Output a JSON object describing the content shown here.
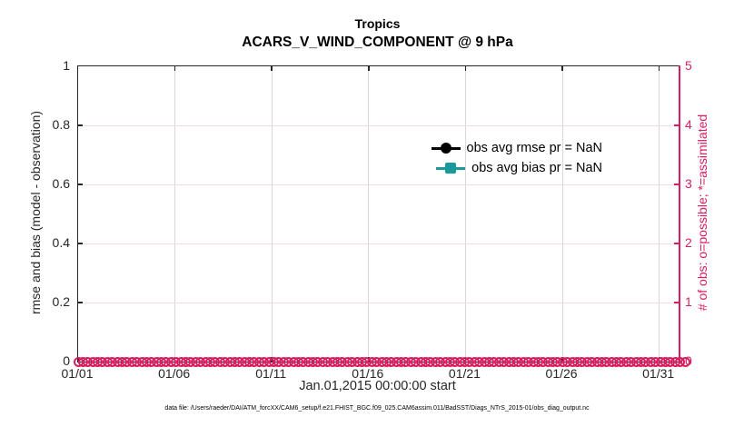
{
  "title": {
    "line1": "Tropics",
    "line2": "ACARS_V_WIND_COMPONENT @ 9 hPa"
  },
  "colors": {
    "accent_pink": "#D81E5F",
    "grid_pink": "#F8D8E3",
    "grid_gray": "#D8D8D8",
    "axis_black": "#262626",
    "teal": "#1A9B9B",
    "legend_black": "#000000"
  },
  "left_axis": {
    "label": "rmse and bias (model - observation)",
    "ticks": [
      "0",
      "0.2",
      "0.4",
      "0.6",
      "0.8",
      "1"
    ],
    "min": 0,
    "max": 1
  },
  "right_axis": {
    "label": "# of obs: o=possible; *=assimilated",
    "ticks": [
      "0",
      "1",
      "2",
      "3",
      "4",
      "5"
    ],
    "min": 0,
    "max": 5
  },
  "x_axis": {
    "tick_labels": [
      "01/01",
      "01/06",
      "01/11",
      "01/16",
      "01/21",
      "01/26",
      "01/31"
    ],
    "tick_days": [
      0,
      5,
      10,
      15,
      20,
      25,
      30
    ],
    "range_days": 31,
    "label": "Jan.01,2015 00:00:00 start"
  },
  "legend": {
    "entries": [
      {
        "label": "obs avg rmse pr = NaN",
        "marker": "circle",
        "color": "#000000"
      },
      {
        "label": "obs avg bias pr = NaN",
        "marker": "square",
        "color": "#1A9B9B"
      }
    ]
  },
  "footer": "data file: /Users/raeder/DAI/ATM_forcXX/CAM6_setup/f.e21.FHIST_BGC.f09_025.CAM6assim.011/BadSST/Diags_NTrS_2015-01/obs_diag_output.nc",
  "chart_data": {
    "type": "line",
    "title": "Tropics",
    "subtitle": "ACARS_V_WIND_COMPONENT @ 9 hPa",
    "xlabel": "Jan.01,2015 00:00:00 start",
    "ylabel_left": "rmse and bias (model - observation)",
    "ylabel_right": "# of obs: o=possible; *=assimilated",
    "x_tick_labels": [
      "01/01",
      "01/06",
      "01/11",
      "01/16",
      "01/21",
      "01/26",
      "01/31"
    ],
    "x_range_days": [
      0,
      31
    ],
    "ylim_left": [
      0,
      1
    ],
    "ylim_right": [
      0,
      5
    ],
    "grid": true,
    "legend_position": "top-right-inside",
    "series": [
      {
        "name": "obs avg rmse pr = NaN",
        "axis": "left",
        "marker": "circle",
        "color": "#000000",
        "values": [],
        "note": "all values NaN, nothing plotted"
      },
      {
        "name": "obs avg bias pr = NaN",
        "axis": "left",
        "marker": "square",
        "color": "#1A9B9B",
        "values": [],
        "note": "all values NaN, nothing plotted"
      },
      {
        "name": "# of obs possible",
        "axis": "right",
        "marker": "o",
        "color": "#D81E5F",
        "constant_value": 0,
        "marker_count": 125,
        "note": "dense overlapping circle markers at 0 across the full time range"
      }
    ]
  }
}
